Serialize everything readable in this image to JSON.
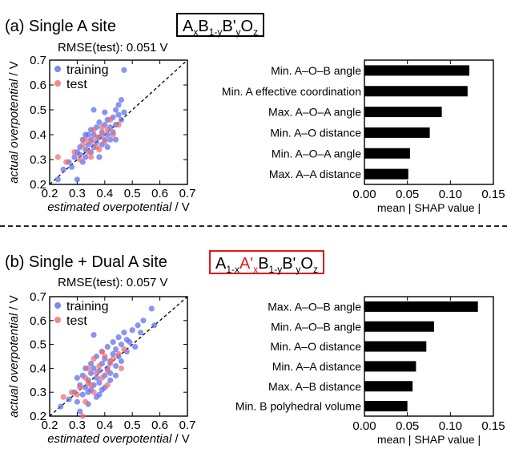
{
  "panels": [
    {
      "heading": "(a) Single A site",
      "formula_text": "AxB1-yB'yOz",
      "rmse": "RMSE(test): 0.051 V",
      "border_color": "#000000"
    },
    {
      "heading": "(b) Single + Dual A site",
      "formula_text": "A1-xA'xB1-yB'yOz",
      "rmse": "RMSE(test): 0.057 V",
      "border_color": "#e0191c"
    }
  ],
  "colors": {
    "training": "#5b6cf0",
    "test": "#f06b6b",
    "bar": "#000000",
    "accent_red": "#e0191c"
  },
  "chart_data": [
    {
      "type": "scatter",
      "xlabel": "estimated overpotential / V",
      "ylabel": "actual overpotential / V",
      "xlim": [
        0.2,
        0.7
      ],
      "ylim": [
        0.2,
        0.7
      ],
      "xticks": [
        "0.2",
        "0.3",
        "0.4",
        "0.5",
        "0.6",
        "0.7"
      ],
      "yticks": [
        "0.2",
        "0.3",
        "0.4",
        "0.5",
        "0.6",
        "0.7"
      ],
      "legend": [
        "training",
        "test"
      ],
      "diagonal": true,
      "series": [
        {
          "name": "training",
          "points": [
            [
              0.23,
              0.22
            ],
            [
              0.25,
              0.26
            ],
            [
              0.27,
              0.29
            ],
            [
              0.28,
              0.27
            ],
            [
              0.29,
              0.31
            ],
            [
              0.3,
              0.33
            ],
            [
              0.3,
              0.22
            ],
            [
              0.31,
              0.35
            ],
            [
              0.32,
              0.29
            ],
            [
              0.32,
              0.38
            ],
            [
              0.33,
              0.31
            ],
            [
              0.33,
              0.34
            ],
            [
              0.34,
              0.36
            ],
            [
              0.34,
              0.4
            ],
            [
              0.35,
              0.33
            ],
            [
              0.35,
              0.38
            ],
            [
              0.35,
              0.42
            ],
            [
              0.36,
              0.35
            ],
            [
              0.36,
              0.4
            ],
            [
              0.37,
              0.37
            ],
            [
              0.37,
              0.43
            ],
            [
              0.38,
              0.39
            ],
            [
              0.38,
              0.45
            ],
            [
              0.39,
              0.36
            ],
            [
              0.39,
              0.41
            ],
            [
              0.4,
              0.38
            ],
            [
              0.4,
              0.44
            ],
            [
              0.41,
              0.4
            ],
            [
              0.41,
              0.46
            ],
            [
              0.42,
              0.43
            ],
            [
              0.42,
              0.38
            ],
            [
              0.43,
              0.47
            ],
            [
              0.43,
              0.41
            ],
            [
              0.44,
              0.5
            ],
            [
              0.44,
              0.44
            ],
            [
              0.45,
              0.48
            ],
            [
              0.45,
              0.52
            ],
            [
              0.46,
              0.46
            ],
            [
              0.46,
              0.54
            ],
            [
              0.47,
              0.49
            ],
            [
              0.36,
              0.5
            ],
            [
              0.38,
              0.31
            ],
            [
              0.31,
              0.32
            ],
            [
              0.33,
              0.4
            ],
            [
              0.47,
              0.66
            ],
            [
              0.4,
              0.49
            ],
            [
              0.44,
              0.38
            ],
            [
              0.41,
              0.35
            ]
          ]
        },
        {
          "name": "test",
          "points": [
            [
              0.23,
              0.31
            ],
            [
              0.26,
              0.29
            ],
            [
              0.29,
              0.33
            ],
            [
              0.31,
              0.3
            ],
            [
              0.32,
              0.36
            ],
            [
              0.33,
              0.38
            ],
            [
              0.35,
              0.31
            ],
            [
              0.36,
              0.42
            ],
            [
              0.37,
              0.39
            ],
            [
              0.38,
              0.34
            ],
            [
              0.39,
              0.43
            ],
            [
              0.4,
              0.37
            ],
            [
              0.41,
              0.42
            ],
            [
              0.42,
              0.46
            ],
            [
              0.43,
              0.4
            ],
            [
              0.45,
              0.44
            ],
            [
              0.35,
              0.37
            ],
            [
              0.37,
              0.35
            ],
            [
              0.39,
              0.4
            ],
            [
              0.34,
              0.33
            ]
          ]
        }
      ]
    },
    {
      "type": "bar",
      "orientation": "horizontal",
      "categories": [
        "Min. A–O–B angle",
        "Min. A effective coordination",
        "Max. A–O–A angle",
        "Min. A–O distance",
        "Min. A–O–A angle",
        "Max. A–A distance"
      ],
      "values": [
        0.122,
        0.12,
        0.09,
        0.076,
        0.053,
        0.051
      ],
      "xlabel": "mean | SHAP value |",
      "xlim": [
        0,
        0.15
      ],
      "xticks": [
        "0.00",
        "0.05",
        "0.10",
        "0.15"
      ]
    },
    {
      "type": "scatter",
      "xlabel": "estimated overpotential / V",
      "ylabel": "actual overpotential / V",
      "xlim": [
        0.2,
        0.7
      ],
      "ylim": [
        0.2,
        0.7
      ],
      "xticks": [
        "0.2",
        "0.3",
        "0.4",
        "0.5",
        "0.6",
        "0.7"
      ],
      "yticks": [
        "0.2",
        "0.3",
        "0.4",
        "0.5",
        "0.6",
        "0.7"
      ],
      "legend": [
        "training",
        "test"
      ],
      "diagonal": true,
      "series": [
        {
          "name": "training",
          "points": [
            [
              0.24,
              0.24
            ],
            [
              0.27,
              0.27
            ],
            [
              0.29,
              0.3
            ],
            [
              0.3,
              0.26
            ],
            [
              0.31,
              0.33
            ],
            [
              0.32,
              0.29
            ],
            [
              0.32,
              0.37
            ],
            [
              0.33,
              0.32
            ],
            [
              0.33,
              0.4
            ],
            [
              0.34,
              0.35
            ],
            [
              0.34,
              0.3
            ],
            [
              0.35,
              0.38
            ],
            [
              0.35,
              0.42
            ],
            [
              0.36,
              0.33
            ],
            [
              0.36,
              0.4
            ],
            [
              0.37,
              0.36
            ],
            [
              0.37,
              0.45
            ],
            [
              0.38,
              0.39
            ],
            [
              0.38,
              0.34
            ],
            [
              0.39,
              0.42
            ],
            [
              0.39,
              0.47
            ],
            [
              0.4,
              0.37
            ],
            [
              0.4,
              0.44
            ],
            [
              0.41,
              0.4
            ],
            [
              0.41,
              0.49
            ],
            [
              0.42,
              0.43
            ],
            [
              0.42,
              0.38
            ],
            [
              0.43,
              0.46
            ],
            [
              0.43,
              0.51
            ],
            [
              0.44,
              0.41
            ],
            [
              0.44,
              0.48
            ],
            [
              0.45,
              0.45
            ],
            [
              0.45,
              0.53
            ],
            [
              0.46,
              0.5
            ],
            [
              0.46,
              0.43
            ],
            [
              0.47,
              0.55
            ],
            [
              0.48,
              0.47
            ],
            [
              0.48,
              0.52
            ],
            [
              0.49,
              0.51
            ],
            [
              0.5,
              0.56
            ],
            [
              0.51,
              0.49
            ],
            [
              0.52,
              0.58
            ],
            [
              0.53,
              0.55
            ],
            [
              0.54,
              0.6
            ],
            [
              0.57,
              0.65
            ],
            [
              0.58,
              0.58
            ],
            [
              0.36,
              0.54
            ],
            [
              0.31,
              0.22
            ],
            [
              0.34,
              0.25
            ],
            [
              0.38,
              0.29
            ],
            [
              0.4,
              0.32
            ],
            [
              0.44,
              0.37
            ],
            [
              0.35,
              0.31
            ],
            [
              0.37,
              0.28
            ],
            [
              0.3,
              0.36
            ],
            [
              0.42,
              0.35
            ],
            [
              0.39,
              0.31
            ]
          ]
        },
        {
          "name": "test",
          "points": [
            [
              0.25,
              0.28
            ],
            [
              0.28,
              0.3
            ],
            [
              0.31,
              0.32
            ],
            [
              0.32,
              0.2
            ],
            [
              0.33,
              0.36
            ],
            [
              0.34,
              0.4
            ],
            [
              0.35,
              0.33
            ],
            [
              0.36,
              0.44
            ],
            [
              0.37,
              0.38
            ],
            [
              0.38,
              0.41
            ],
            [
              0.39,
              0.36
            ],
            [
              0.4,
              0.45
            ],
            [
              0.41,
              0.39
            ],
            [
              0.42,
              0.42
            ],
            [
              0.43,
              0.44
            ],
            [
              0.45,
              0.46
            ],
            [
              0.46,
              0.4
            ],
            [
              0.47,
              0.48
            ],
            [
              0.33,
              0.26
            ],
            [
              0.36,
              0.3
            ],
            [
              0.39,
              0.47
            ],
            [
              0.41,
              0.33
            ],
            [
              0.3,
              0.29
            ],
            [
              0.34,
              0.34
            ]
          ]
        }
      ]
    },
    {
      "type": "bar",
      "orientation": "horizontal",
      "categories": [
        "Max. A–O–B angle",
        "Min. A–O–B angle",
        "Min. A–O distance",
        "Min. A–A distance",
        "Max. A–B distance",
        "Min. B polyhedral volume"
      ],
      "values": [
        0.132,
        0.081,
        0.072,
        0.06,
        0.056,
        0.05
      ],
      "xlabel": "mean | SHAP value |",
      "xlim": [
        0,
        0.15
      ],
      "xticks": [
        "0.00",
        "0.05",
        "0.10",
        "0.15"
      ]
    }
  ]
}
